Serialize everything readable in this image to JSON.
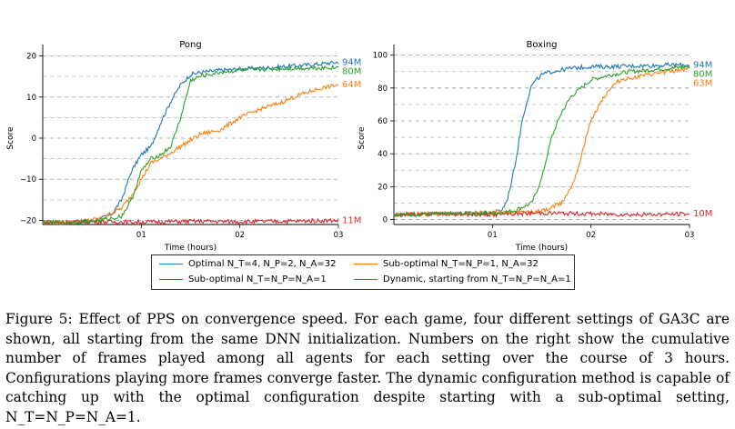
{
  "chart_data": [
    {
      "type": "line",
      "title": "Pong",
      "xlabel": "Time (hours)",
      "ylabel": "Score",
      "xlim": [
        0,
        3
      ],
      "ylim": [
        -21,
        21
      ],
      "xticks": [
        "01",
        "02",
        "03"
      ],
      "yticks": [
        -20,
        -10,
        0,
        10,
        20
      ],
      "grid": "horizontal dashed",
      "series": [
        {
          "name": "Optimal N_T=4, N_P=2, N_A=32",
          "color": "#1f77b4",
          "end_label": "94M",
          "x": [
            0,
            0.3,
            0.5,
            0.6,
            0.7,
            0.8,
            0.9,
            1.0,
            1.1,
            1.2,
            1.3,
            1.4,
            1.5,
            1.6,
            1.8,
            2.0,
            2.2,
            2.5,
            2.8,
            3.0
          ],
          "y": [
            -20.5,
            -20.5,
            -20.2,
            -19.5,
            -18.5,
            -15,
            -8,
            -4,
            -2,
            4,
            9,
            13,
            15.5,
            16,
            16.5,
            16.8,
            17,
            17.5,
            18,
            18.5
          ]
        },
        {
          "name": "Optimal N_T=4, N_P=2, N_A=32",
          "color": "#1f77b4",
          "end_label": "80M",
          "skip_legend": true,
          "x": [],
          "y": []
        },
        {
          "name": "Sub-optimal N_T=N_P=1, N_A=32",
          "color": "#ff7f0e",
          "end_label": "64M",
          "x": [
            0,
            0.3,
            0.6,
            0.8,
            0.9,
            1.0,
            1.1,
            1.2,
            1.4,
            1.6,
            1.8,
            2.0,
            2.2,
            2.4,
            2.6,
            2.8,
            3.0
          ],
          "y": [
            -20.5,
            -20.5,
            -19.5,
            -17,
            -14,
            -10,
            -6,
            -5,
            -2,
            1,
            2,
            5,
            7,
            8.5,
            10.5,
            12,
            13
          ]
        },
        {
          "name": "Sub-optimal N_T=N_P=N_A=1",
          "color": "#d62728",
          "end_label": "11M",
          "x": [
            0,
            0.5,
            1.0,
            1.5,
            2.0,
            2.5,
            3.0
          ],
          "y": [
            -20.5,
            -20.3,
            -20.4,
            -20.2,
            -20.3,
            -20.2,
            -20.0
          ]
        },
        {
          "name": "Dynamic, starting from N_T=N_P=N_A=1",
          "color": "#2ca02c",
          "end_label": "80M",
          "x": [
            0,
            0.3,
            0.6,
            0.8,
            0.9,
            1.0,
            1.1,
            1.2,
            1.3,
            1.4,
            1.5,
            1.6,
            1.7,
            1.8,
            2.0,
            2.3,
            2.6,
            3.0
          ],
          "y": [
            -20.5,
            -20.5,
            -20.0,
            -19,
            -15,
            -8,
            -5,
            -4,
            -2,
            5,
            14,
            15,
            15.5,
            16,
            16.5,
            16.8,
            17,
            17.2
          ]
        }
      ]
    },
    {
      "type": "line",
      "title": "Boxing",
      "xlabel": "Time (hours)",
      "ylabel": "Score",
      "xlim": [
        0,
        3
      ],
      "ylim": [
        -3,
        102
      ],
      "xticks": [
        "01",
        "02",
        "03"
      ],
      "yticks": [
        0,
        20,
        40,
        60,
        80,
        100
      ],
      "grid": "horizontal dashed",
      "series": [
        {
          "name": "Optimal",
          "color": "#1f77b4",
          "end_label": "94M",
          "x": [
            0,
            0.5,
            1.0,
            1.1,
            1.15,
            1.2,
            1.25,
            1.3,
            1.35,
            1.4,
            1.5,
            1.6,
            1.7,
            1.8,
            2.0,
            2.2,
            2.5,
            2.8,
            3.0
          ],
          "y": [
            3,
            3.5,
            4,
            6,
            12,
            25,
            40,
            60,
            72,
            82,
            88,
            90,
            91,
            92,
            93,
            93,
            93.5,
            94,
            94
          ]
        },
        {
          "name": "Sub-optimal N_T=N_P=1",
          "color": "#ff7f0e",
          "end_label": "63M",
          "x": [
            0,
            0.5,
            1.0,
            1.5,
            1.7,
            1.8,
            1.85,
            1.9,
            1.95,
            2.0,
            2.1,
            2.2,
            2.3,
            2.4,
            2.5,
            2.6,
            2.8,
            3.0
          ],
          "y": [
            3,
            3.5,
            4,
            5,
            10,
            20,
            28,
            38,
            50,
            60,
            72,
            80,
            85,
            86,
            87,
            88,
            90,
            92
          ]
        },
        {
          "name": "Sub-optimal N_T=N_P=N_A=1",
          "color": "#d62728",
          "end_label": "10M",
          "x": [
            0,
            0.5,
            1.0,
            1.5,
            2.0,
            2.5,
            3.0
          ],
          "y": [
            3,
            3.5,
            3,
            4,
            3.5,
            3,
            3.5
          ]
        },
        {
          "name": "Dynamic",
          "color": "#2ca02c",
          "end_label": "80M",
          "x": [
            0,
            0.5,
            1.0,
            1.2,
            1.4,
            1.5,
            1.6,
            1.7,
            1.8,
            1.9,
            2.0,
            2.2,
            2.4,
            2.6,
            2.8,
            3.0
          ],
          "y": [
            3,
            3.5,
            4,
            5,
            10,
            25,
            50,
            65,
            75,
            80,
            85,
            88,
            90,
            91,
            92,
            93
          ]
        }
      ]
    }
  ],
  "legend": {
    "items": [
      {
        "key": "opt",
        "color": "#1f77b4",
        "text": "Optimal N_T=4, N_P=2, N_A=32"
      },
      {
        "key": "sub1",
        "color": "#ff7f0e",
        "text": "Sub-optimal N_T=N_P=1, N_A=32"
      },
      {
        "key": "sub2",
        "color": "#d62728",
        "text": "Sub-optimal N_T=N_P=N_A=1"
      },
      {
        "key": "dyn",
        "color": "#2ca02c",
        "text": "Dynamic, starting from N_T=N_P=N_A=1"
      }
    ]
  },
  "caption": {
    "text": "Figure 5: Effect of PPS on convergence speed. For each game, four different settings of GA3C are shown, all starting from the same DNN initialization. Numbers on the right show the cumulative number of frames played among all agents for each setting over the course of 3 hours. Configurations playing more frames converge faster. The dynamic configuration method is capable of catching up with the optimal configuration despite starting with a sub-optimal setting, N_T=N_P=N_A=1."
  }
}
